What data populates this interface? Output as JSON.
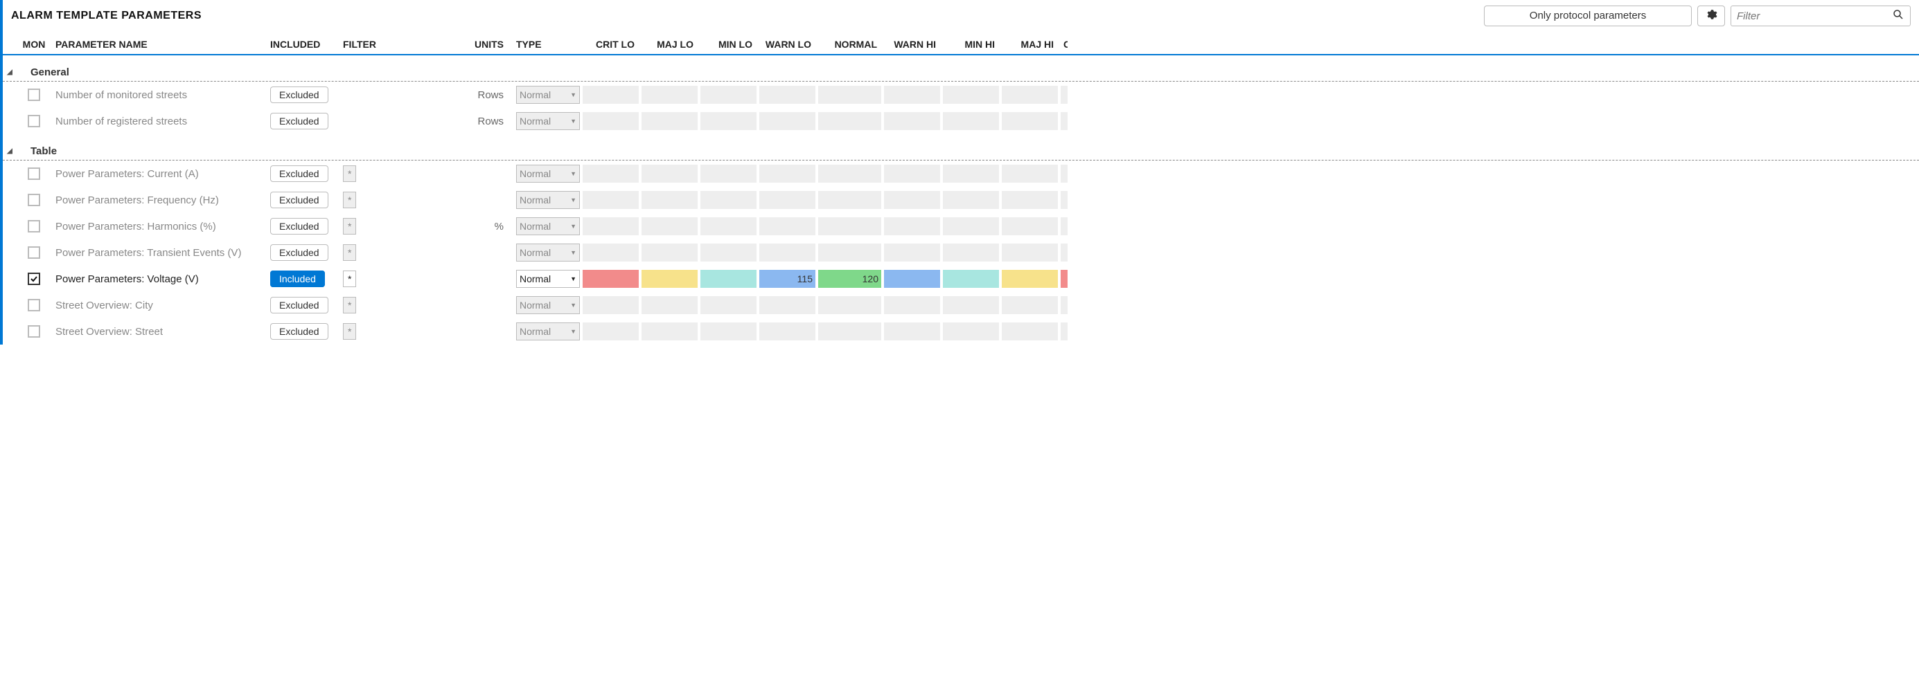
{
  "title": "ALARM TEMPLATE PARAMETERS",
  "protocolFilter": "Only protocol parameters",
  "filterPlaceholder": "Filter",
  "columns": {
    "mon": "MON",
    "name": "PARAMETER NAME",
    "included": "INCLUDED",
    "filter": "FILTER",
    "units": "UNITS",
    "type": "TYPE",
    "critLo": "CRIT LO",
    "majLo": "MAJ LO",
    "minLo": "MIN LO",
    "warnLo": "WARN LO",
    "normal": "NORMAL",
    "warnHi": "WARN HI",
    "minHi": "MIN HI",
    "majHi": "MAJ HI",
    "critHi": "C"
  },
  "thresholdColors": {
    "critLo": "#f28b8b",
    "majLo": "#f7e28b",
    "minLo": "#a8e6e0",
    "warnLo": "#8bb8f0",
    "normal": "#7fd88a",
    "warnHi": "#8bb8f0",
    "minHi": "#a8e6e0",
    "majHi": "#f7e28b",
    "critHi": "#f28b8b",
    "inactive": "#eeeeee"
  },
  "groups": [
    {
      "name": "General",
      "rows": [
        {
          "mon": false,
          "name": "Number of monitored streets",
          "included": "Excluded",
          "filter": null,
          "units": "Rows",
          "type": "Normal",
          "active": false,
          "thresholds": {}
        },
        {
          "mon": false,
          "name": "Number of registered streets",
          "included": "Excluded",
          "filter": null,
          "units": "Rows",
          "type": "Normal",
          "active": false,
          "thresholds": {}
        }
      ]
    },
    {
      "name": "Table",
      "rows": [
        {
          "mon": false,
          "name": "Power Parameters: Current (A)",
          "included": "Excluded",
          "filter": "*",
          "units": "",
          "type": "Normal",
          "active": false,
          "thresholds": {}
        },
        {
          "mon": false,
          "name": "Power Parameters: Frequency (Hz)",
          "included": "Excluded",
          "filter": "*",
          "units": "",
          "type": "Normal",
          "active": false,
          "thresholds": {}
        },
        {
          "mon": false,
          "name": "Power Parameters: Harmonics (%)",
          "included": "Excluded",
          "filter": "*",
          "units": "%",
          "type": "Normal",
          "active": false,
          "thresholds": {}
        },
        {
          "mon": false,
          "name": "Power Parameters: Transient Events (V)",
          "included": "Excluded",
          "filter": "*",
          "units": "",
          "type": "Normal",
          "active": false,
          "thresholds": {}
        },
        {
          "mon": true,
          "name": "Power Parameters: Voltage (V)",
          "included": "Included",
          "filter": "*",
          "units": "",
          "type": "Normal",
          "active": true,
          "thresholds": {
            "critLo": "",
            "majLo": "",
            "minLo": "",
            "warnLo": "115",
            "normal": "120",
            "warnHi": "",
            "minHi": "",
            "majHi": "",
            "critHi": ""
          }
        },
        {
          "mon": false,
          "name": "Street Overview: City",
          "included": "Excluded",
          "filter": "*",
          "units": "",
          "type": "Normal",
          "active": false,
          "thresholds": {}
        },
        {
          "mon": false,
          "name": "Street Overview: Street",
          "included": "Excluded",
          "filter": "*",
          "units": "",
          "type": "Normal",
          "active": false,
          "thresholds": {}
        }
      ]
    }
  ]
}
